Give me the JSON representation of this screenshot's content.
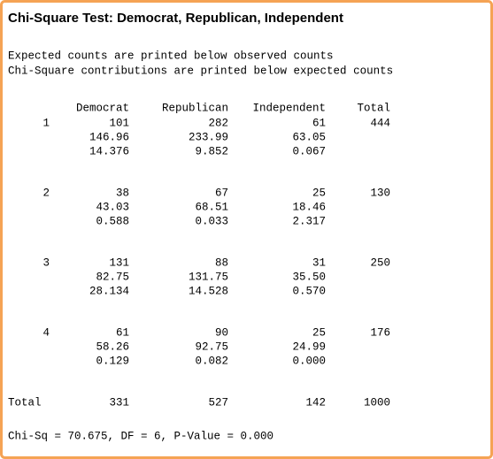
{
  "title": "Chi-Square Test: Democrat, Republican, Independent",
  "notes": [
    "Expected counts are printed below observed counts",
    "Chi-Square contributions are printed below expected counts"
  ],
  "table": {
    "header": [
      "Democrat",
      "Republican",
      "Independent",
      "Total"
    ],
    "rows": [
      {
        "label": "1",
        "observed": [
          "101",
          "282",
          "61",
          "444"
        ],
        "expected": [
          "146.96",
          "233.99",
          "63.05"
        ],
        "contributions": [
          "14.376",
          "9.852",
          "0.067"
        ]
      },
      {
        "label": "2",
        "observed": [
          "38",
          "67",
          "25",
          "130"
        ],
        "expected": [
          "43.03",
          "68.51",
          "18.46"
        ],
        "contributions": [
          "0.588",
          "0.033",
          "2.317"
        ]
      },
      {
        "label": "3",
        "observed": [
          "131",
          "88",
          "31",
          "250"
        ],
        "expected": [
          "82.75",
          "131.75",
          "35.50"
        ],
        "contributions": [
          "28.134",
          "14.528",
          "0.570"
        ]
      },
      {
        "label": "4",
        "observed": [
          "61",
          "90",
          "25",
          "176"
        ],
        "expected": [
          "58.26",
          "92.75",
          "24.99"
        ],
        "contributions": [
          "0.129",
          "0.082",
          "0.000"
        ]
      }
    ],
    "total": {
      "label": "Total",
      "values": [
        "331",
        "527",
        "142",
        "1000"
      ]
    }
  },
  "result": "Chi-Sq = 70.675, DF = 6, P-Value = 0.000"
}
